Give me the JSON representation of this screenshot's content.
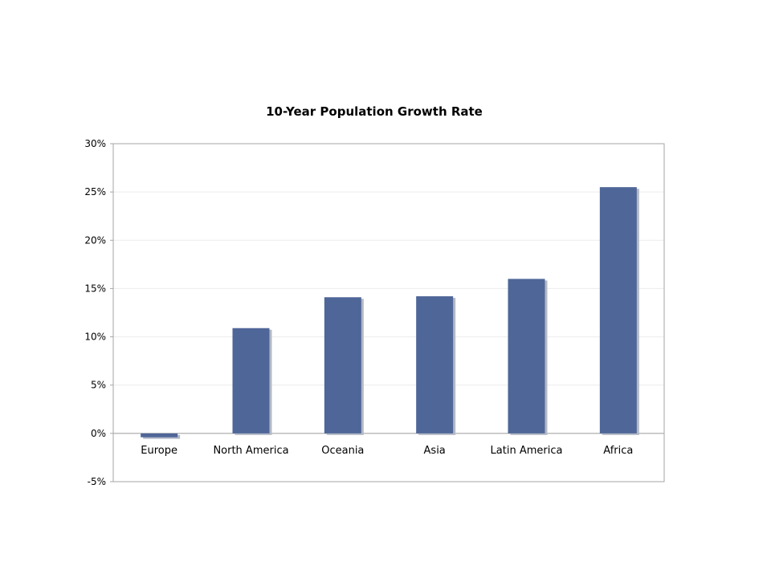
{
  "chart_data": {
    "type": "bar",
    "title": "10-Year Population Growth Rate",
    "xlabel": "",
    "ylabel": "",
    "categories": [
      "Europe",
      "North America",
      "Oceania",
      "Asia",
      "Latin America",
      "Africa"
    ],
    "values": [
      -0.4,
      10.9,
      14.1,
      14.2,
      16.0,
      25.5
    ],
    "ylim": [
      -5,
      30
    ],
    "yticks": [
      -5,
      0,
      5,
      10,
      15,
      20,
      25,
      30
    ],
    "ytick_labels": [
      "-5%",
      "0%",
      "5%",
      "10%",
      "15%",
      "20%",
      "25%",
      "30%"
    ],
    "grid": true,
    "legend": "none",
    "bar_color": "#4f6698",
    "shadow_color": "#b4b9c6",
    "gridline_color": "#ececec",
    "frame_color": "#a6a6a6"
  }
}
